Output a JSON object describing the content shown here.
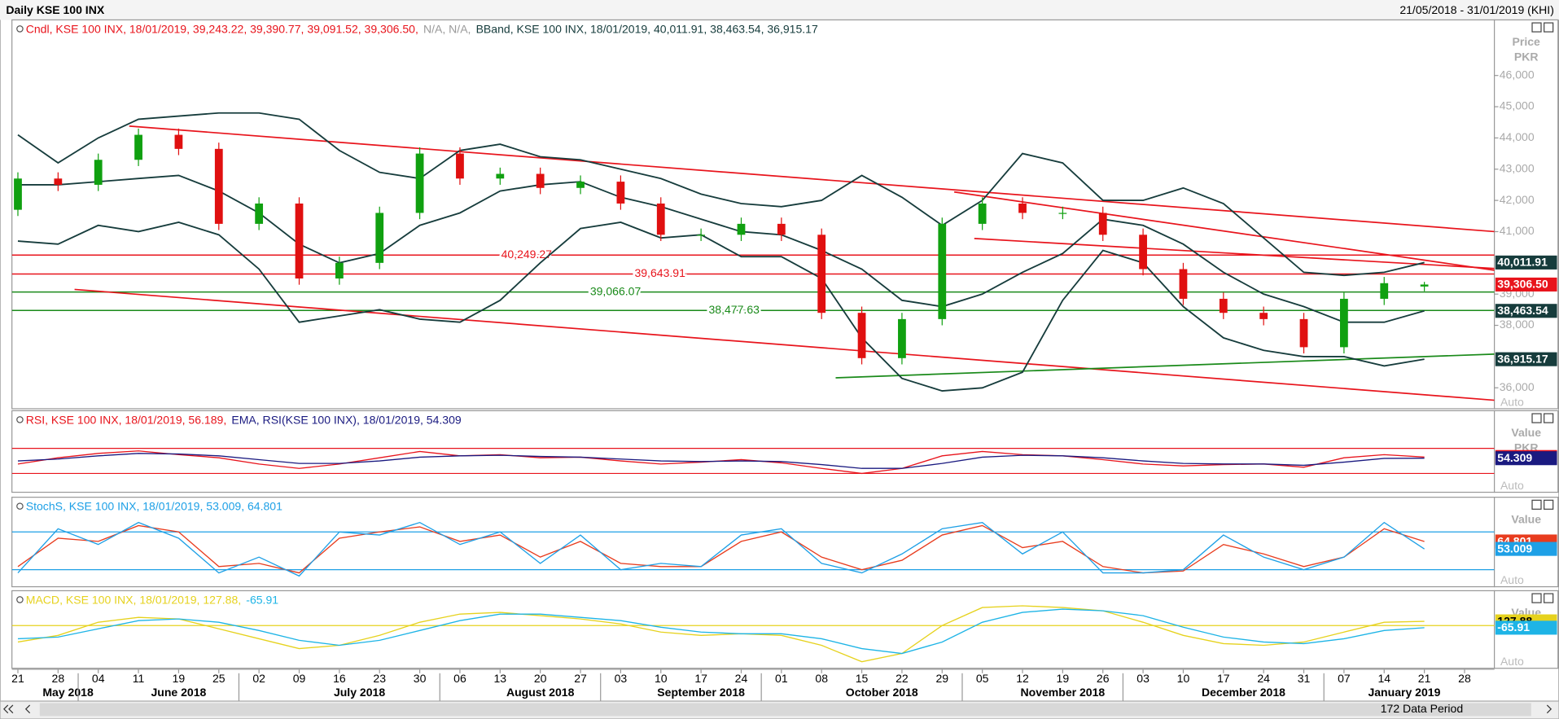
{
  "header": {
    "title": "Daily KSE 100 INX",
    "range": "21/05/2018 - 31/01/2019 (KHI)"
  },
  "footer": {
    "data_period": "172 Data Period"
  },
  "chart_data": [
    {
      "type": "candlestick",
      "legend": [
        {
          "text": "Cndl, KSE 100 INX, 18/01/2019, 39,243.22, 39,390.77, 39,091.52, 39,306.50,",
          "color": "#e8141c"
        },
        {
          "text": "N/A, N/A,",
          "color": "#9a9a9a"
        },
        {
          "text": "BBand, KSE 100 INX, 18/01/2019, 40,011.91, 38,463.54, 36,915.17",
          "color": "#163c3c"
        }
      ],
      "axis_title": [
        "Price",
        "PKR"
      ],
      "auto_label": "Auto",
      "categories": [
        "21",
        "28",
        "04",
        "11",
        "19",
        "25",
        "02",
        "09",
        "16",
        "23",
        "30",
        "06",
        "13",
        "20",
        "27",
        "03",
        "10",
        "17",
        "24",
        "01",
        "08",
        "15",
        "22",
        "29",
        "05",
        "12",
        "19",
        "26",
        "03",
        "10",
        "17",
        "24",
        "31",
        "07",
        "14",
        "21",
        "28"
      ],
      "months": [
        "May 2018",
        "June 2018",
        "July 2018",
        "August 2018",
        "September 2018",
        "October 2018",
        "November 2018",
        "December 2018",
        "January 2019"
      ],
      "open": [
        41700,
        42700,
        42500,
        43300,
        44100,
        43650,
        41250,
        41900,
        39500,
        40000,
        41600,
        43500,
        42700,
        42850,
        42400,
        42600,
        41900,
        40900,
        40900,
        41250,
        40900,
        38400,
        36950,
        38200,
        41250,
        41900,
        41600,
        41600,
        40900,
        39800,
        38850,
        38400,
        38200,
        37300,
        38850,
        39243.22,
        null
      ],
      "high": [
        42900,
        42900,
        43500,
        44300,
        44300,
        43850,
        42100,
        42100,
        40200,
        41800,
        43700,
        43700,
        43050,
        43050,
        42800,
        42800,
        42100,
        41100,
        41450,
        41450,
        41100,
        38600,
        38400,
        41450,
        42100,
        42100,
        41800,
        41800,
        41100,
        40000,
        39050,
        38600,
        38400,
        39050,
        39550,
        39390.77,
        null
      ],
      "low": [
        41500,
        42300,
        42300,
        43100,
        43450,
        41050,
        41050,
        39300,
        39300,
        39800,
        41400,
        42500,
        42500,
        42200,
        42200,
        41700,
        40700,
        40700,
        40700,
        40700,
        38200,
        36750,
        36750,
        38000,
        41050,
        41400,
        41400,
        40700,
        39600,
        38650,
        38200,
        38000,
        37100,
        37100,
        38650,
        39091.52,
        null
      ],
      "close": [
        42700,
        42500,
        43300,
        44100,
        43650,
        41250,
        41900,
        39500,
        40000,
        41600,
        43500,
        42700,
        42850,
        42400,
        42600,
        41900,
        40900,
        40900,
        41250,
        40900,
        38400,
        36950,
        38200,
        41250,
        41900,
        41600,
        41600,
        40900,
        39800,
        38850,
        38400,
        38200,
        37300,
        38850,
        39350,
        39306.5,
        null
      ],
      "up_color": "#10a010",
      "down_color": "#e01010",
      "close_label": "39,306.50",
      "close_color": "#e8141c",
      "series": [
        {
          "color": "#163c3c",
          "last_label": "40,011.91",
          "values": [
            44100,
            43200,
            44000,
            44600,
            44700,
            44800,
            44800,
            44600,
            43600,
            42900,
            42700,
            43600,
            43800,
            43400,
            43300,
            43000,
            42700,
            42200,
            41900,
            41800,
            42000,
            42800,
            42100,
            41200,
            42000,
            43500,
            43200,
            42000,
            42000,
            42400,
            41900,
            40800,
            39700,
            39600,
            39700,
            40011.91,
            null
          ]
        },
        {
          "color": "#163c3c",
          "last_label": "38,463.54",
          "values": [
            42500,
            42500,
            42600,
            42700,
            42800,
            42300,
            41600,
            40600,
            40000,
            40300,
            41200,
            41600,
            42300,
            42500,
            42600,
            42100,
            41800,
            41400,
            41000,
            40900,
            40400,
            39800,
            38800,
            38600,
            39000,
            39700,
            40300,
            41400,
            41200,
            40600,
            39700,
            39000,
            38600,
            38100,
            38100,
            38463.54,
            null
          ]
        },
        {
          "color": "#163c3c",
          "last_label": "36,915.17",
          "values": [
            40700,
            40600,
            41200,
            41000,
            41300,
            40900,
            39800,
            38100,
            38300,
            38500,
            38200,
            38100,
            38800,
            40000,
            41100,
            41300,
            40800,
            40900,
            40200,
            40200,
            39500,
            37600,
            36300,
            35900,
            36000,
            36500,
            38800,
            40400,
            40000,
            38600,
            37600,
            37200,
            37000,
            37000,
            36700,
            36915.17,
            null
          ]
        }
      ],
      "levels": [
        {
          "value": 40249.27,
          "label": "40,249.27",
          "color": "#e8141c"
        },
        {
          "value": 39643.91,
          "label": "39,643.91",
          "color": "#e8141c"
        },
        {
          "value": 39066.07,
          "label": "39,066.07",
          "color": "#1a8a1a"
        },
        {
          "value": 38477.63,
          "label": "38,477.63",
          "color": "#1a8a1a"
        }
      ],
      "trendlines": [
        {
          "from": [
            2.77,
            44380
          ],
          "to": [
            36.76,
            41000
          ],
          "color": "#e8141c"
        },
        {
          "from": [
            1.41,
            39150
          ],
          "to": [
            36.76,
            35600
          ],
          "color": "#e8141c"
        },
        {
          "from": [
            23.3,
            42270
          ],
          "to": [
            36.76,
            39760
          ],
          "color": "#e8141c"
        },
        {
          "from": [
            23.8,
            40780
          ],
          "to": [
            36.76,
            39820
          ],
          "color": "#e8141c"
        },
        {
          "from": [
            20.35,
            36320
          ],
          "to": [
            36.76,
            37080
          ],
          "color": "#1a8a1a"
        }
      ],
      "ylim": [
        35330,
        47780
      ],
      "yticks": [
        {
          "value": 36000,
          "label": "36,000"
        },
        {
          "value": 38000,
          "label": "38,000"
        },
        {
          "value": 39000,
          "label": "39,000"
        },
        {
          "value": 41000,
          "label": "41,000"
        },
        {
          "value": 42000,
          "label": "42,000"
        },
        {
          "value": 43000,
          "label": "43,000"
        },
        {
          "value": 44000,
          "label": "44,000"
        },
        {
          "value": 45000,
          "label": "45,000"
        },
        {
          "value": 46000,
          "label": "46,000"
        }
      ]
    },
    {
      "type": "line",
      "legend": [
        {
          "text": "RSI, KSE 100 INX, 18/01/2019, 56.189,",
          "color": "#e8141c"
        },
        {
          "text": "EMA, RSI(KSE 100 INX), 18/01/2019, 54.309",
          "color": "#1a1a80"
        }
      ],
      "axis_title": [
        "Value",
        "PKR"
      ],
      "auto_label": "Auto",
      "levels": [
        30,
        70
      ],
      "level_color": "#e8141c",
      "series": [
        {
          "color": "#e8141c",
          "values": [
            45,
            55,
            62,
            66,
            60,
            55,
            45,
            38,
            45,
            55,
            65,
            58,
            60,
            55,
            56,
            50,
            45,
            48,
            52,
            47,
            38,
            30,
            38,
            58,
            65,
            60,
            58,
            52,
            45,
            42,
            44,
            45,
            40,
            55,
            60,
            56.189,
            null
          ]
        },
        {
          "color": "#1a1a80",
          "values": [
            50,
            53,
            58,
            62,
            61,
            58,
            52,
            46,
            46,
            50,
            56,
            58,
            59,
            57,
            56,
            53,
            50,
            49,
            50,
            49,
            44,
            38,
            38,
            46,
            56,
            59,
            58,
            55,
            50,
            46,
            45,
            45,
            43,
            48,
            54,
            54.309,
            null
          ]
        }
      ],
      "ylim": [
        0,
        130
      ]
    },
    {
      "type": "line",
      "legend": [
        {
          "text": "StochS, KSE 100 INX, 18/01/2019, 53.009, 64.801",
          "color": "#1ea0e6"
        }
      ],
      "axis_title": [
        "Value"
      ],
      "auto_label": "Auto",
      "levels": [
        20,
        80
      ],
      "level_color": "#1ea0e6",
      "series": [
        {
          "color": "#e83c1e",
          "values": [
            25,
            70,
            65,
            90,
            80,
            25,
            30,
            15,
            70,
            80,
            88,
            65,
            75,
            40,
            65,
            30,
            25,
            25,
            65,
            80,
            40,
            20,
            35,
            75,
            90,
            55,
            65,
            25,
            15,
            18,
            60,
            45,
            25,
            40,
            85,
            64.801,
            null
          ]
        },
        {
          "color": "#1ea0e6",
          "values": [
            15,
            85,
            60,
            95,
            70,
            15,
            40,
            10,
            80,
            75,
            95,
            60,
            80,
            30,
            75,
            20,
            30,
            25,
            75,
            85,
            30,
            15,
            45,
            85,
            95,
            45,
            80,
            15,
            15,
            20,
            75,
            40,
            20,
            40,
            95,
            53.009,
            null
          ]
        }
      ],
      "ylim": [
        -7,
        135
      ]
    },
    {
      "type": "line",
      "legend": [
        {
          "text": "MACD, KSE 100 INX, 18/01/2019, 127.88,",
          "color": "#e6d21e"
        },
        {
          "text": "-65.91",
          "color": "#1eb4e6"
        }
      ],
      "axis_title": [
        "Value"
      ],
      "auto_label": "Auto",
      "levels": [
        0
      ],
      "level_color": "#e6d21e",
      "series": [
        {
          "color": "#e6d21e",
          "values": [
            -500,
            -300,
            100,
            250,
            200,
            -100,
            -400,
            -700,
            -600,
            -300,
            100,
            350,
            400,
            300,
            200,
            50,
            -200,
            -300,
            -250,
            -300,
            -600,
            -1100,
            -850,
            0,
            550,
            600,
            550,
            450,
            100,
            -300,
            -550,
            -600,
            -500,
            -200,
            100,
            127.88,
            null
          ]
        },
        {
          "color": "#1eb4e6",
          "values": [
            -400,
            -350,
            -100,
            150,
            200,
            100,
            -150,
            -450,
            -600,
            -450,
            -150,
            150,
            350,
            350,
            250,
            150,
            -50,
            -200,
            -250,
            -250,
            -400,
            -700,
            -850,
            -500,
            100,
            400,
            500,
            450,
            300,
            -50,
            -350,
            -500,
            -550,
            -400,
            -150,
            -65.91,
            null
          ]
        }
      ],
      "ylim": [
        -1300,
        1060
      ]
    }
  ]
}
